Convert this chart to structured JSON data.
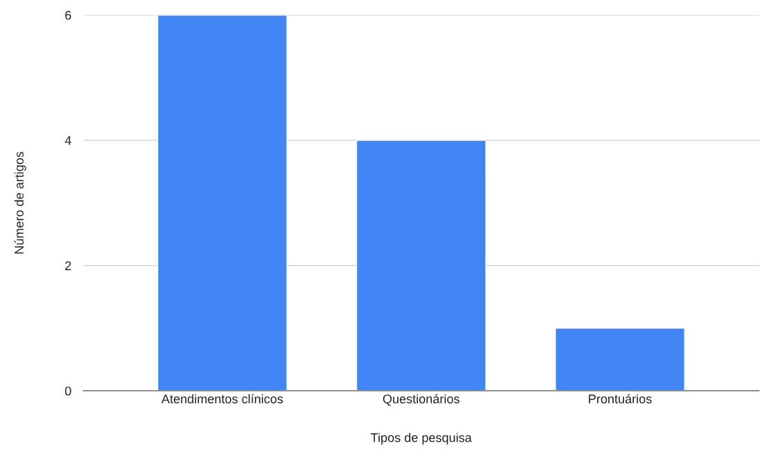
{
  "chart_data": {
    "type": "bar",
    "xlabel": "Tipos de pesquisa",
    "ylabel": "Número de artigos",
    "categories": [
      "Atendimentos clínicos",
      "Questionários",
      "Prontuários"
    ],
    "values": [
      6,
      4,
      1
    ],
    "color": "#4285f4",
    "ylim": [
      0,
      6
    ],
    "yticks": [
      0,
      2,
      4,
      6
    ],
    "grid": "y"
  }
}
